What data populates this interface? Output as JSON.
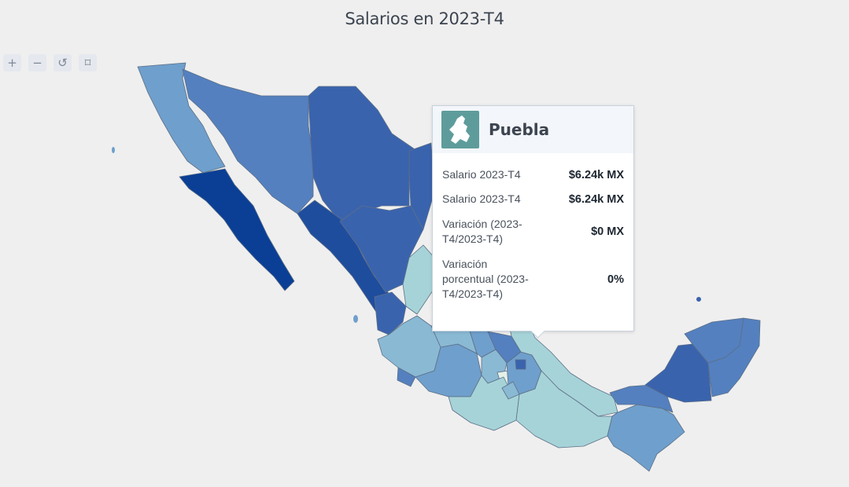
{
  "title": "Salarios en 2023-T4",
  "controls": {
    "zoom_in": "+",
    "zoom_out": "−",
    "reset": "↺",
    "fullscreen": "⌑"
  },
  "map": {
    "country": "Mexico",
    "color_scale": [
      "#a6d3d8",
      "#8ab9d4",
      "#6f9fcc",
      "#5480bf",
      "#3a63ae",
      "#1f4d9e",
      "#0a3f95"
    ],
    "highlight_color": "#e4f0e8"
  },
  "tooltip": {
    "state": "Puebla",
    "icon": "puebla-state-icon",
    "rows": [
      {
        "label": "Salario 2023-T4",
        "value": "$6.24k MX"
      },
      {
        "label": "Salario 2023-T4",
        "value": "$6.24k MX"
      },
      {
        "label": "Variación (2023-T4/2023-T4)",
        "value": "$0 MX"
      },
      {
        "label": "Variación porcentual (2023-T4/2023-T4)",
        "value": "0%"
      }
    ]
  }
}
